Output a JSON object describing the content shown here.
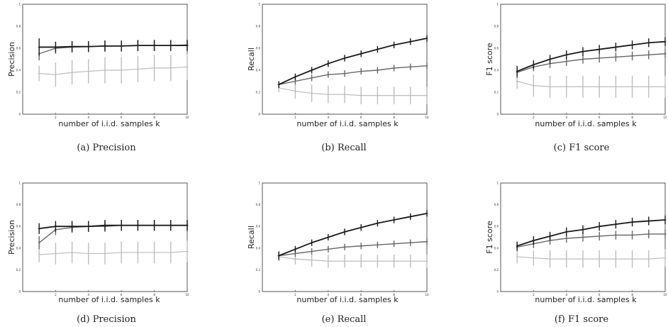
{
  "figure": {
    "panels": [
      {
        "caption": "(a)  Precision",
        "ylabel": "Precision",
        "xlabel": "number of i.i.d. samples k"
      },
      {
        "caption": "(b)  Recall",
        "ylabel": "Recall",
        "xlabel": "number of i.i.d. samples k"
      },
      {
        "caption": "(c)  F1 score",
        "ylabel": "F1 score",
        "xlabel": "number of i.i.d. samples k"
      },
      {
        "caption": "(d)  Precision",
        "ylabel": "Precision",
        "xlabel": "number of i.i.d. samples k"
      },
      {
        "caption": "(e)  Recall",
        "ylabel": "Recall",
        "xlabel": "number of i.i.d. samples k"
      },
      {
        "caption": "(f)  F1 score",
        "ylabel": "F1 score",
        "xlabel": "number of i.i.d. samples k"
      }
    ],
    "colors": {
      "dark": "#1a1a1a",
      "medium": "#666666",
      "light": "#bdbdbd",
      "frame": "#555555"
    }
  },
  "chart_data": [
    {
      "type": "line",
      "ylabel": "Precision",
      "xlabel": "number of i.i.d. samples k",
      "x": [
        1,
        2,
        3,
        4,
        5,
        6,
        7,
        8,
        9,
        10
      ],
      "xlim": [
        0,
        10
      ],
      "ylim": [
        0,
        1
      ],
      "xticks": [
        "2",
        "4",
        "6",
        "8",
        "10"
      ],
      "yticks": [
        "0",
        "0.2",
        "0.4",
        "0.6",
        "0.8",
        "1"
      ],
      "series": [
        {
          "style": "dark",
          "values": [
            0.61,
            0.61,
            0.615,
            0.615,
            0.62,
            0.62,
            0.625,
            0.625,
            0.625,
            0.625
          ],
          "err": [
            0.08,
            0.05,
            0.05,
            0.05,
            0.05,
            0.05,
            0.05,
            0.05,
            0.05,
            0.05
          ]
        },
        {
          "style": "medium",
          "values": [
            0.55,
            0.6,
            0.61,
            0.615,
            0.62,
            0.62,
            0.625,
            0.625,
            0.625,
            0.63
          ],
          "err": [
            0.06,
            0.05,
            0.05,
            0.05,
            0.05,
            0.05,
            0.05,
            0.05,
            0.05,
            0.05
          ]
        },
        {
          "style": "light",
          "values": [
            0.37,
            0.36,
            0.38,
            0.39,
            0.4,
            0.4,
            0.41,
            0.42,
            0.42,
            0.43
          ],
          "err": [
            0.07,
            0.11,
            0.11,
            0.11,
            0.12,
            0.12,
            0.12,
            0.12,
            0.12,
            0.12
          ]
        }
      ]
    },
    {
      "type": "line",
      "ylabel": "Recall",
      "xlabel": "number of i.i.d. samples k",
      "x": [
        1,
        2,
        3,
        4,
        5,
        6,
        7,
        8,
        9,
        10
      ],
      "xlim": [
        0,
        10
      ],
      "ylim": [
        0,
        1
      ],
      "xticks": [
        "2",
        "4",
        "6",
        "8",
        "10"
      ],
      "yticks": [
        "0",
        "0.2",
        "0.4",
        "0.6",
        "0.8",
        "1"
      ],
      "series": [
        {
          "style": "dark",
          "values": [
            0.27,
            0.34,
            0.4,
            0.46,
            0.51,
            0.55,
            0.59,
            0.63,
            0.66,
            0.69
          ],
          "err": [
            0.03,
            0.03,
            0.03,
            0.03,
            0.03,
            0.03,
            0.03,
            0.03,
            0.03,
            0.03
          ]
        },
        {
          "style": "medium",
          "values": [
            0.27,
            0.3,
            0.33,
            0.36,
            0.37,
            0.39,
            0.4,
            0.42,
            0.43,
            0.44
          ],
          "err": [
            0.03,
            0.03,
            0.03,
            0.03,
            0.03,
            0.03,
            0.03,
            0.03,
            0.03,
            0.03
          ]
        },
        {
          "style": "light",
          "values": [
            0.24,
            0.21,
            0.19,
            0.18,
            0.18,
            0.17,
            0.17,
            0.17,
            0.17,
            0.17
          ],
          "err": [
            0.04,
            0.07,
            0.08,
            0.08,
            0.08,
            0.08,
            0.08,
            0.08,
            0.08,
            0.08
          ]
        }
      ]
    },
    {
      "type": "line",
      "ylabel": "F1 score",
      "xlabel": "number of i.i.d. samples k",
      "x": [
        1,
        2,
        3,
        4,
        5,
        6,
        7,
        8,
        9,
        10
      ],
      "xlim": [
        0,
        10
      ],
      "ylim": [
        0,
        1
      ],
      "xticks": [
        "2",
        "4",
        "6",
        "8",
        "10"
      ],
      "yticks": [
        "0",
        "0.2",
        "0.4",
        "0.6",
        "0.8",
        "1"
      ],
      "series": [
        {
          "style": "dark",
          "values": [
            0.39,
            0.45,
            0.5,
            0.54,
            0.57,
            0.59,
            0.61,
            0.63,
            0.65,
            0.66
          ],
          "err": [
            0.05,
            0.04,
            0.04,
            0.04,
            0.04,
            0.04,
            0.04,
            0.04,
            0.04,
            0.04
          ]
        },
        {
          "style": "medium",
          "values": [
            0.38,
            0.43,
            0.46,
            0.48,
            0.5,
            0.51,
            0.52,
            0.53,
            0.54,
            0.55
          ],
          "err": [
            0.05,
            0.04,
            0.04,
            0.04,
            0.04,
            0.04,
            0.04,
            0.04,
            0.04,
            0.04
          ]
        },
        {
          "style": "light",
          "values": [
            0.3,
            0.26,
            0.25,
            0.25,
            0.25,
            0.25,
            0.25,
            0.25,
            0.25,
            0.25
          ],
          "err": [
            0.07,
            0.1,
            0.1,
            0.1,
            0.1,
            0.1,
            0.1,
            0.1,
            0.1,
            0.1
          ]
        }
      ]
    },
    {
      "type": "line",
      "ylabel": "Precision",
      "xlabel": "number of i.i.d. samples k",
      "x": [
        1,
        2,
        3,
        4,
        5,
        6,
        7,
        8,
        9,
        10
      ],
      "xlim": [
        0,
        10
      ],
      "ylim": [
        0,
        1
      ],
      "xticks": [
        "2",
        "4",
        "6",
        "8",
        "10"
      ],
      "yticks": [
        "0",
        "0.2",
        "0.4",
        "0.6",
        "0.8",
        "1"
      ],
      "series": [
        {
          "style": "dark",
          "values": [
            0.58,
            0.6,
            0.6,
            0.6,
            0.61,
            0.61,
            0.61,
            0.61,
            0.61,
            0.61
          ],
          "err": [
            0.05,
            0.05,
            0.05,
            0.05,
            0.05,
            0.05,
            0.05,
            0.05,
            0.05,
            0.05
          ]
        },
        {
          "style": "medium",
          "values": [
            0.45,
            0.57,
            0.59,
            0.6,
            0.6,
            0.61,
            0.61,
            0.61,
            0.61,
            0.61
          ],
          "err": [
            0.06,
            0.05,
            0.05,
            0.05,
            0.05,
            0.05,
            0.05,
            0.05,
            0.05,
            0.05
          ]
        },
        {
          "style": "light",
          "values": [
            0.34,
            0.35,
            0.36,
            0.35,
            0.35,
            0.36,
            0.36,
            0.36,
            0.36,
            0.37
          ],
          "err": [
            0.07,
            0.1,
            0.1,
            0.1,
            0.1,
            0.1,
            0.1,
            0.1,
            0.1,
            0.1
          ]
        }
      ]
    },
    {
      "type": "line",
      "ylabel": "Recall",
      "xlabel": "number of i.i.d. samples k",
      "x": [
        1,
        2,
        3,
        4,
        5,
        6,
        7,
        8,
        9,
        10
      ],
      "xlim": [
        0,
        10
      ],
      "ylim": [
        0,
        1
      ],
      "xticks": [
        "2",
        "4",
        "6",
        "8",
        "10"
      ],
      "yticks": [
        "0",
        "0.2",
        "0.4",
        "0.6",
        "0.8",
        "1"
      ],
      "series": [
        {
          "style": "dark",
          "values": [
            0.33,
            0.39,
            0.45,
            0.5,
            0.55,
            0.59,
            0.63,
            0.66,
            0.69,
            0.72
          ],
          "err": [
            0.04,
            0.03,
            0.03,
            0.03,
            0.03,
            0.03,
            0.03,
            0.03,
            0.03,
            0.03
          ]
        },
        {
          "style": "medium",
          "values": [
            0.33,
            0.35,
            0.37,
            0.39,
            0.41,
            0.42,
            0.43,
            0.44,
            0.45,
            0.46
          ],
          "err": [
            0.04,
            0.03,
            0.03,
            0.03,
            0.03,
            0.03,
            0.03,
            0.03,
            0.03,
            0.03
          ]
        },
        {
          "style": "light",
          "values": [
            0.32,
            0.3,
            0.29,
            0.28,
            0.28,
            0.28,
            0.28,
            0.28,
            0.28,
            0.28
          ],
          "err": [
            0.04,
            0.05,
            0.06,
            0.06,
            0.06,
            0.06,
            0.06,
            0.06,
            0.06,
            0.06
          ]
        }
      ]
    },
    {
      "type": "line",
      "ylabel": "F1 score",
      "xlabel": "number of i.i.d. samples k",
      "x": [
        1,
        2,
        3,
        4,
        5,
        6,
        7,
        8,
        9,
        10
      ],
      "xlim": [
        0,
        10
      ],
      "ylim": [
        0,
        1
      ],
      "xticks": [
        "2",
        "4",
        "6",
        "8",
        "10"
      ],
      "yticks": [
        "0",
        "0.2",
        "0.4",
        "0.6",
        "0.8",
        "1"
      ],
      "series": [
        {
          "style": "dark",
          "values": [
            0.42,
            0.47,
            0.51,
            0.55,
            0.57,
            0.6,
            0.62,
            0.64,
            0.65,
            0.66
          ],
          "err": [
            0.04,
            0.04,
            0.04,
            0.04,
            0.04,
            0.04,
            0.04,
            0.04,
            0.04,
            0.04
          ]
        },
        {
          "style": "medium",
          "values": [
            0.41,
            0.44,
            0.47,
            0.49,
            0.5,
            0.51,
            0.52,
            0.52,
            0.53,
            0.53
          ],
          "err": [
            0.04,
            0.04,
            0.04,
            0.04,
            0.04,
            0.04,
            0.04,
            0.04,
            0.04,
            0.04
          ]
        },
        {
          "style": "light",
          "values": [
            0.32,
            0.31,
            0.3,
            0.3,
            0.3,
            0.3,
            0.3,
            0.3,
            0.3,
            0.31
          ],
          "err": [
            0.06,
            0.07,
            0.08,
            0.08,
            0.08,
            0.08,
            0.08,
            0.08,
            0.08,
            0.08
          ]
        }
      ]
    }
  ]
}
